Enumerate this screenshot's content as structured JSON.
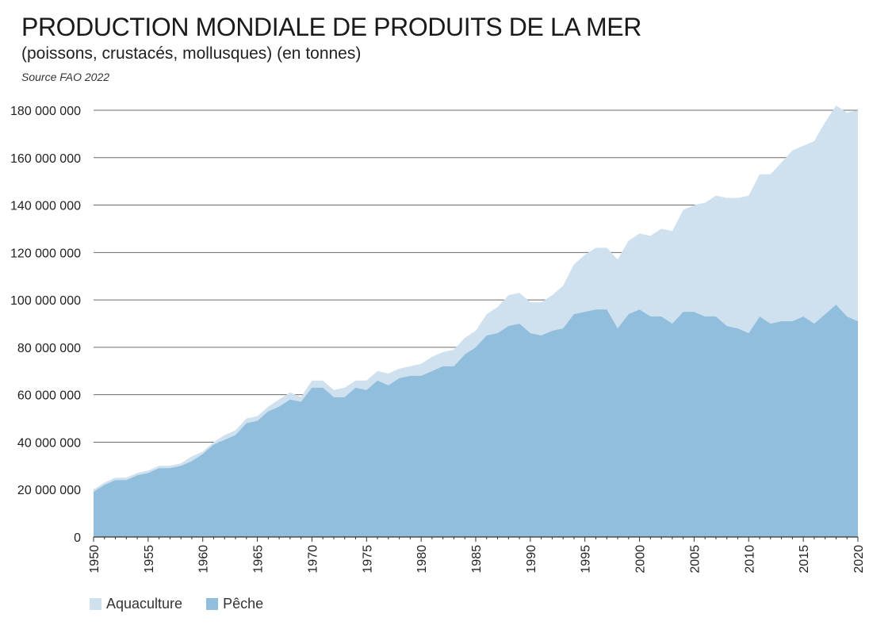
{
  "header": {
    "title": "PRODUCTION MONDIALE DE PRODUITS DE LA MER",
    "subtitle": "(poissons, crustacés, mollusques) (en tonnes)",
    "source": "Source FAO 2022"
  },
  "colors": {
    "aquaculture": "#cfe0ee",
    "peche": "#92bedd",
    "grid": "#6b6b6b"
  },
  "legend": {
    "aquaculture_label": "Aquaculture",
    "peche_label": "Pêche"
  },
  "chart_data": {
    "type": "area",
    "stacked": true,
    "ylim": [
      0,
      180000000
    ],
    "yticks": [
      0,
      20000000,
      40000000,
      60000000,
      80000000,
      100000000,
      120000000,
      140000000,
      160000000,
      180000000
    ],
    "ytick_labels": [
      "0",
      "20 000 000",
      "40 000 000",
      "60 000 000",
      "80 000 000",
      "100 000 000",
      "120 000 000",
      "140 000 000",
      "160 000 000",
      "180 000 000"
    ],
    "xticks": [
      1950,
      1955,
      1960,
      1965,
      1970,
      1975,
      1980,
      1985,
      1990,
      1995,
      2000,
      2005,
      2010,
      2015,
      2020
    ],
    "grid": true,
    "legend_position": "bottom-left",
    "x": [
      1950,
      1951,
      1952,
      1953,
      1954,
      1955,
      1956,
      1957,
      1958,
      1959,
      1960,
      1961,
      1962,
      1963,
      1964,
      1965,
      1966,
      1967,
      1968,
      1969,
      1970,
      1971,
      1972,
      1973,
      1974,
      1975,
      1976,
      1977,
      1978,
      1979,
      1980,
      1981,
      1982,
      1983,
      1984,
      1985,
      1986,
      1987,
      1988,
      1989,
      1990,
      1991,
      1992,
      1993,
      1994,
      1995,
      1996,
      1997,
      1998,
      1999,
      2000,
      2001,
      2002,
      2003,
      2004,
      2005,
      2006,
      2007,
      2008,
      2009,
      2010,
      2011,
      2012,
      2013,
      2014,
      2015,
      2016,
      2017,
      2018,
      2019,
      2020
    ],
    "series": [
      {
        "name": "Pêche",
        "values": [
          19000000,
          22000000,
          24000000,
          24000000,
          26000000,
          27000000,
          29000000,
          29000000,
          30000000,
          32000000,
          35000000,
          39000000,
          41000000,
          43000000,
          48000000,
          49000000,
          53000000,
          55000000,
          58000000,
          57000000,
          63000000,
          63000000,
          59000000,
          59000000,
          63000000,
          62000000,
          66000000,
          64000000,
          67000000,
          68000000,
          68000000,
          70000000,
          72000000,
          72000000,
          77000000,
          80000000,
          85000000,
          86000000,
          89000000,
          90000000,
          86000000,
          85000000,
          87000000,
          88000000,
          94000000,
          95000000,
          96000000,
          96000000,
          88000000,
          94000000,
          96000000,
          93000000,
          93000000,
          90000000,
          95000000,
          95000000,
          93000000,
          93000000,
          89000000,
          88000000,
          86000000,
          93000000,
          90000000,
          91000000,
          91000000,
          93000000,
          90000000,
          94000000,
          98000000,
          93000000,
          91000000
        ]
      },
      {
        "name": "Aquaculture",
        "values": [
          1000000,
          1000000,
          1000000,
          1000000,
          1000000,
          1000000,
          1000000,
          1000000,
          1000000,
          2000000,
          1000000,
          1000000,
          2000000,
          2000000,
          2000000,
          2000000,
          2000000,
          3000000,
          3000000,
          2000000,
          3000000,
          3000000,
          3000000,
          4000000,
          3000000,
          4000000,
          4000000,
          5000000,
          4000000,
          4000000,
          5000000,
          6000000,
          6000000,
          7000000,
          7000000,
          7000000,
          9000000,
          11000000,
          13000000,
          13000000,
          13000000,
          14000000,
          15000000,
          18000000,
          21000000,
          24000000,
          26000000,
          26000000,
          29000000,
          31000000,
          32000000,
          34000000,
          37000000,
          39000000,
          43000000,
          45000000,
          48000000,
          51000000,
          54000000,
          55000000,
          58000000,
          60000000,
          63000000,
          67000000,
          72000000,
          72000000,
          77000000,
          81000000,
          84000000,
          86000000,
          89000000
        ]
      }
    ]
  }
}
